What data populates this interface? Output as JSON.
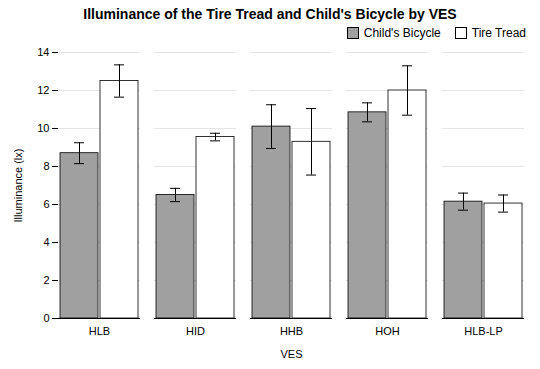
{
  "chart_data": {
    "type": "bar",
    "title": "Illuminance of the Tire Tread and Child's Bicycle by VES",
    "xlabel": "VES",
    "ylabel": "Illuminance (lx)",
    "categories": [
      "HLB",
      "HID",
      "HHB",
      "HOH",
      "HLB-LP"
    ],
    "series": [
      {
        "name": "Child's Bicycle",
        "color": "#a0a0a0",
        "values": [
          8.7,
          6.5,
          10.1,
          10.85,
          6.15
        ],
        "errors": [
          0.55,
          0.35,
          1.15,
          0.5,
          0.45
        ]
      },
      {
        "name": "Tire Tread",
        "color": "white",
        "values": [
          12.5,
          9.55,
          9.3,
          12.0,
          6.05
        ],
        "errors": [
          0.85,
          0.2,
          1.75,
          1.3,
          0.45
        ]
      }
    ],
    "ylim": [
      0,
      14
    ],
    "yticks": [
      0,
      2,
      4,
      6,
      8,
      10,
      12,
      14
    ],
    "grid": true,
    "legend": "upper right"
  }
}
